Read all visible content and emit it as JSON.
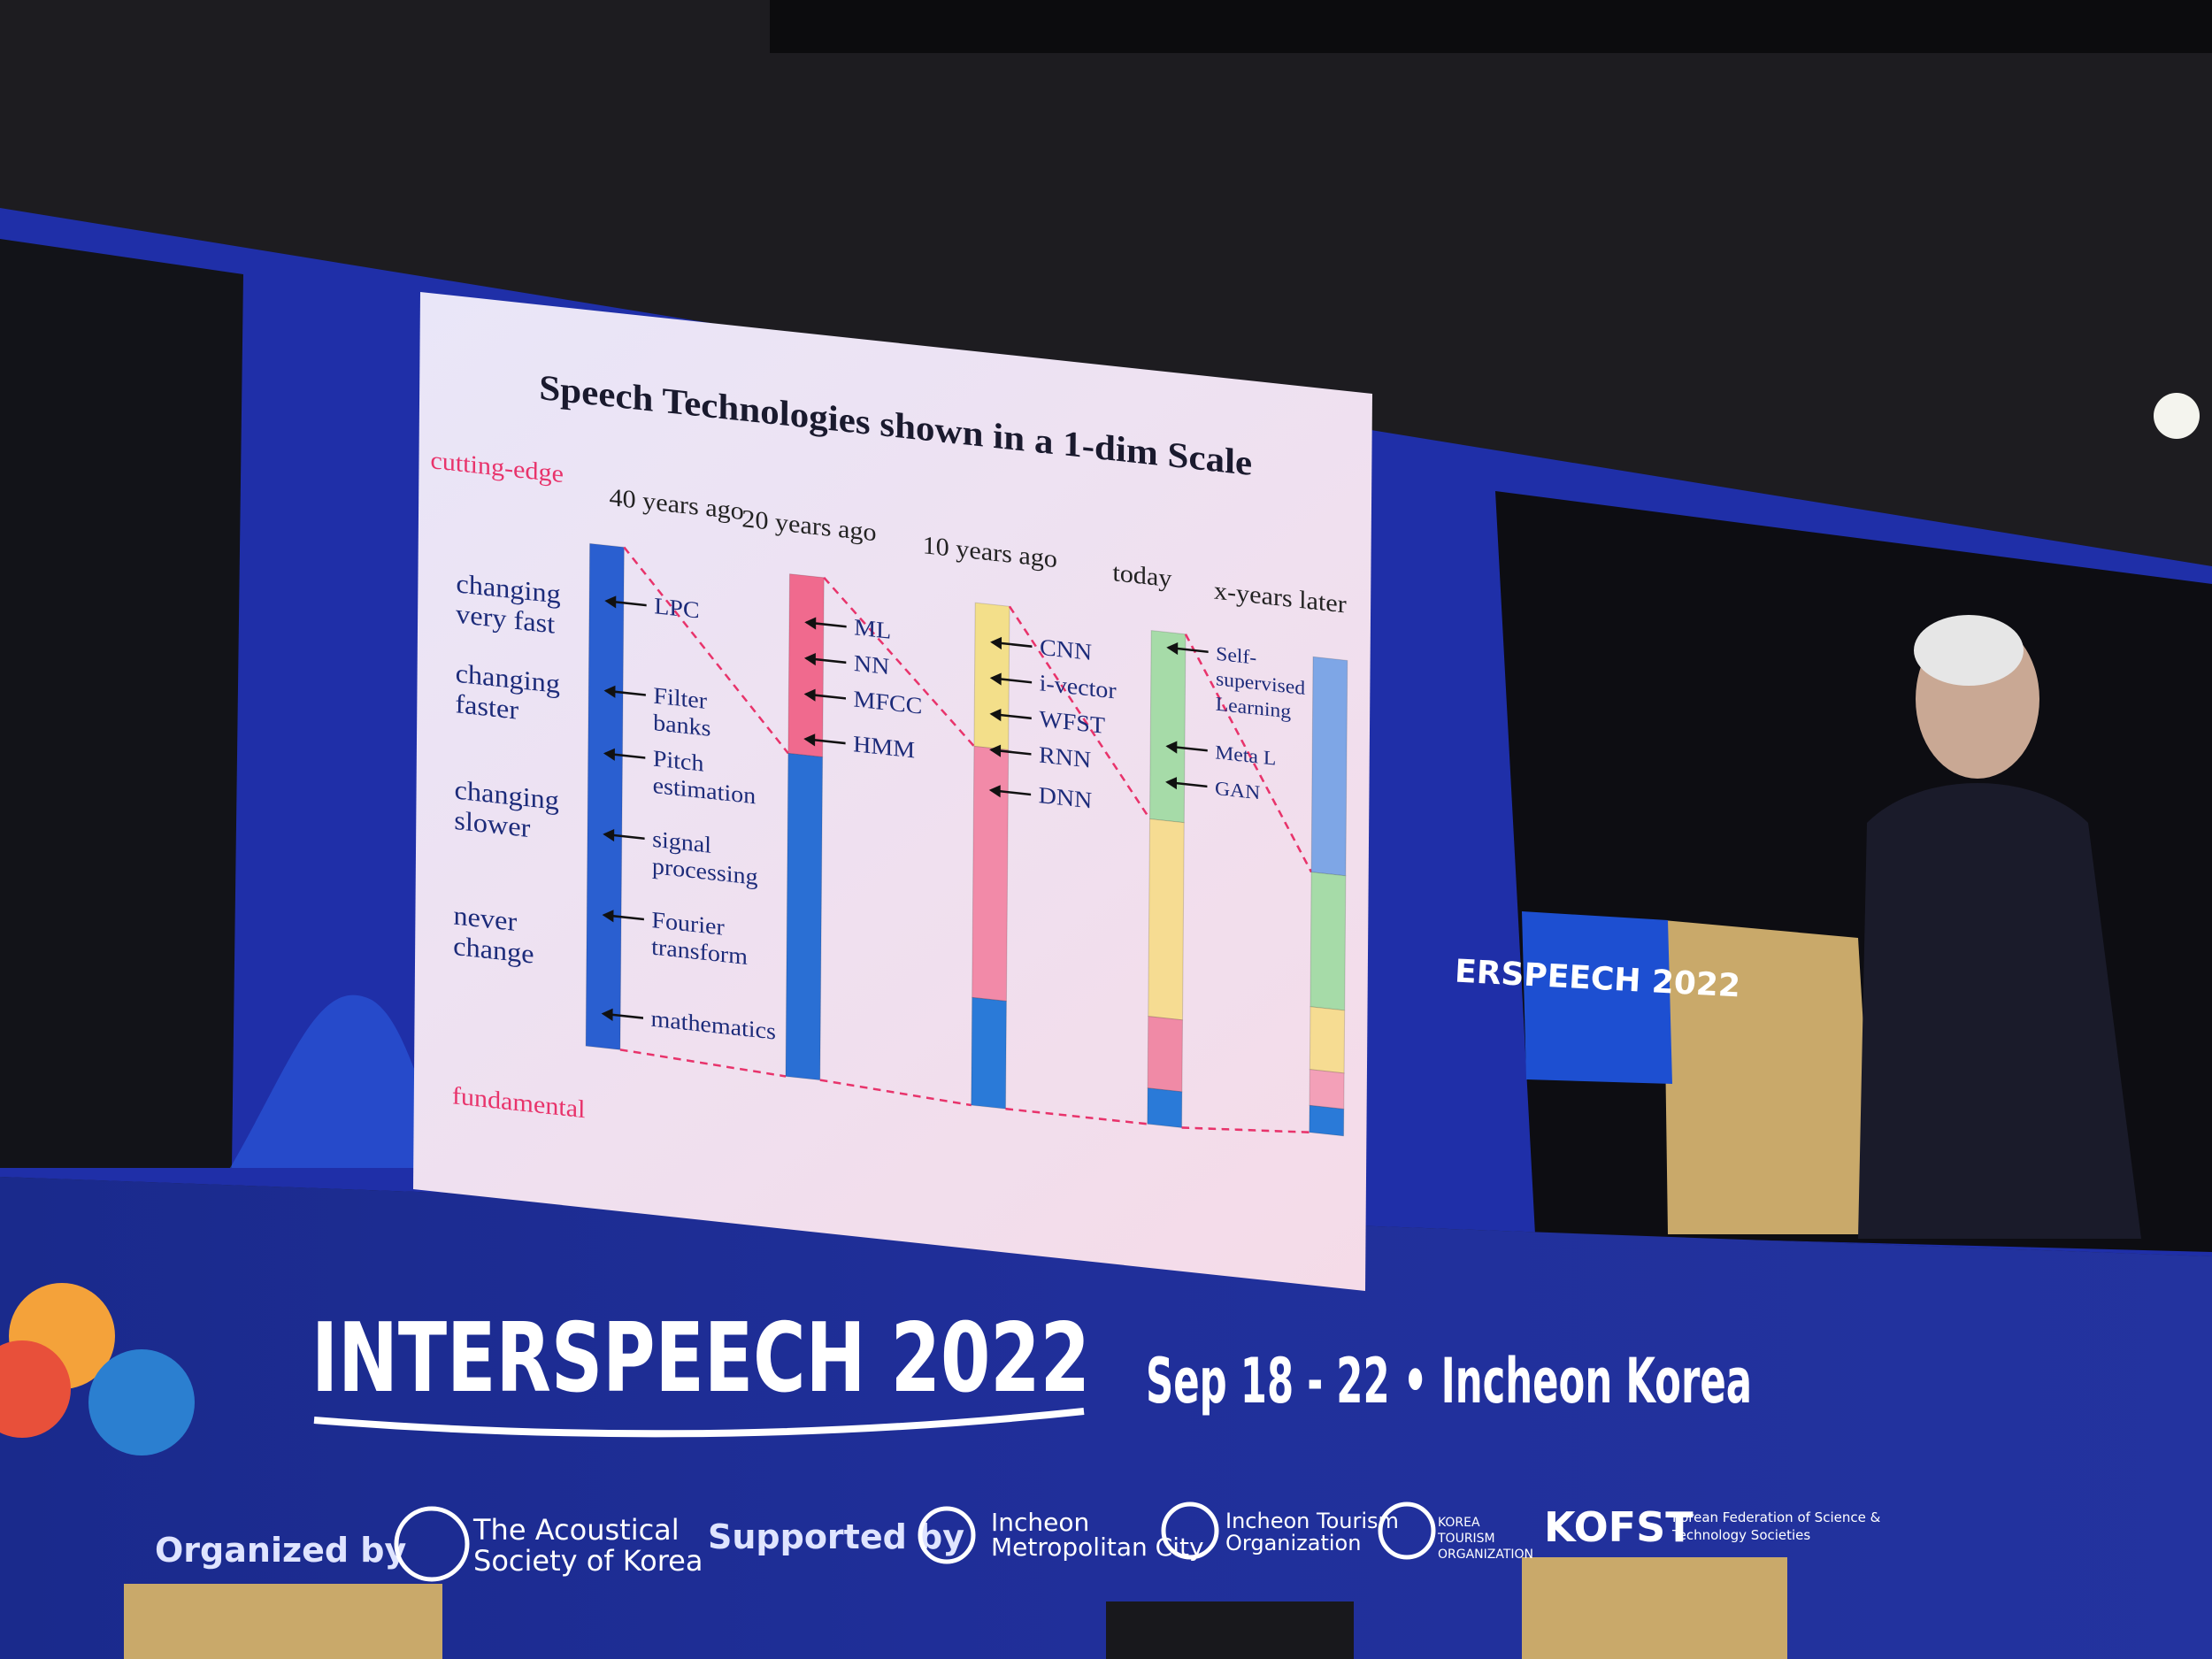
{
  "slide": {
    "title": "Speech Technologies shown in a 1-dim Scale",
    "top_label": "cutting-edge",
    "bottom_label": "fundamental",
    "row_labels": [
      [
        "changing",
        "very fast"
      ],
      [
        "changing",
        "faster"
      ],
      [
        "changing",
        "slower"
      ],
      [
        "never",
        "change"
      ]
    ],
    "columns": [
      {
        "header": "40 years ago",
        "items": [
          [
            "LPC"
          ],
          [
            "Filter",
            "banks"
          ],
          [
            "Pitch",
            "estimation"
          ],
          [
            "signal",
            "processing"
          ],
          [
            "Fourier",
            "transform"
          ],
          [
            "mathematics"
          ]
        ]
      },
      {
        "header": "20 years ago",
        "items": [
          [
            "ML"
          ],
          [
            "NN"
          ],
          [
            "MFCC"
          ],
          [
            "HMM"
          ]
        ]
      },
      {
        "header": "10 years ago",
        "items": [
          [
            "CNN"
          ],
          [
            "i-vector"
          ],
          [
            "WFST"
          ],
          [
            "RNN"
          ],
          [
            "DNN"
          ]
        ]
      },
      {
        "header": "today",
        "items": [
          [
            "Self-",
            "supervised",
            "Learning"
          ],
          [
            "Meta L"
          ],
          [
            "GAN"
          ]
        ]
      },
      {
        "header": "x-years later"
      }
    ]
  },
  "banner": {
    "event": "INTERSPEECH 2022",
    "dates": "Sep 18 - 22 • Incheon Korea",
    "organized_by": "Organized by",
    "organizer": [
      "The Acoustical",
      "Society of Korea"
    ],
    "supported_by": "Supported by",
    "supporters": [
      [
        "Incheon",
        "Metropolitan City"
      ],
      [
        "Incheon Tourism",
        "Organization"
      ],
      [
        "KOREA",
        "TOURISM",
        "ORGANIZATION"
      ],
      [
        "KOFST"
      ],
      [
        "Korean Federation of Science &",
        "Technology Societies"
      ]
    ]
  },
  "podium": "ERSPEECH 2022"
}
